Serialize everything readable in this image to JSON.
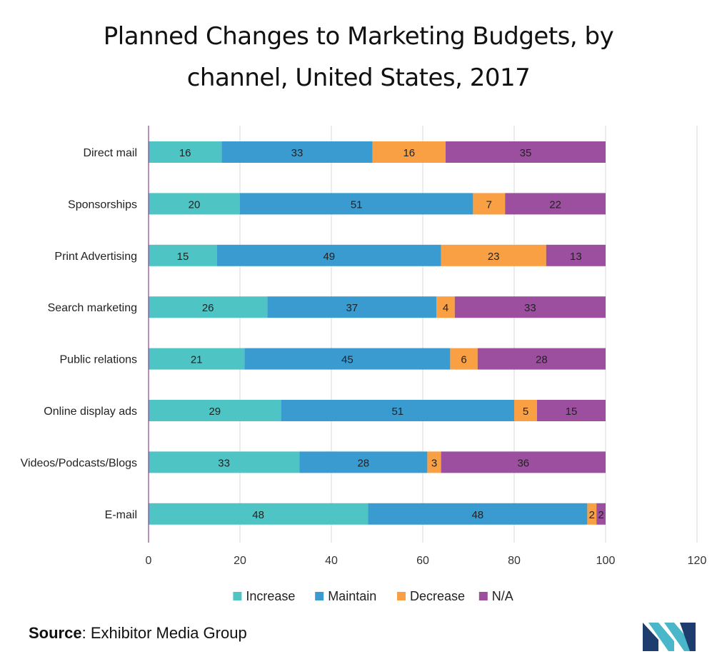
{
  "title_line1": "Planned Changes to Marketing Budgets, by",
  "title_line2": "channel, United States, 2017",
  "source_label": "Source",
  "source_text": ": Exhibitor Media Group",
  "chart_data": {
    "type": "bar",
    "orientation": "horizontal",
    "stacked": true,
    "categories": [
      "Direct mail",
      "Sponsorships",
      "Print Advertising",
      "Search marketing",
      "Public relations",
      "Online display ads",
      "Videos/Podcasts/Blogs",
      "E-mail"
    ],
    "series": [
      {
        "name": "Increase",
        "color": "#4fc4c4",
        "values": [
          16,
          20,
          15,
          26,
          21,
          29,
          33,
          48
        ]
      },
      {
        "name": "Maintain",
        "color": "#3a9bd0",
        "values": [
          33,
          51,
          49,
          37,
          45,
          51,
          28,
          48
        ]
      },
      {
        "name": "Decrease",
        "color": "#f9a044",
        "values": [
          16,
          7,
          23,
          4,
          6,
          5,
          3,
          2
        ]
      },
      {
        "name": "N/A",
        "color": "#9b4f9e",
        "values": [
          35,
          22,
          13,
          33,
          28,
          15,
          36,
          2
        ]
      }
    ],
    "xlim": [
      0,
      120
    ],
    "xticks": [
      0,
      20,
      40,
      60,
      80,
      100,
      120
    ],
    "grid": "vertical",
    "legend": "bottom"
  },
  "colors": {
    "axis": "#8e3f8f",
    "grid": "#d9d9d9",
    "text": "#222222"
  }
}
